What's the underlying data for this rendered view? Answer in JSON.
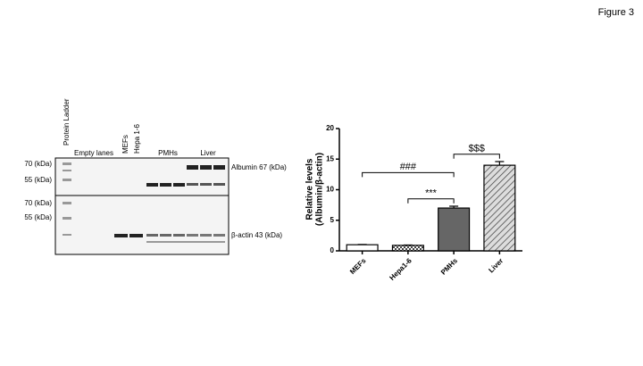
{
  "figure_label": "Figure 3",
  "blot": {
    "lane_labels": [
      "Protein Ladder",
      "Empty lanes",
      "MEFs",
      "Hepa 1-6",
      "PMHs",
      "Liver"
    ],
    "markers_top": [
      "70 (kDa)",
      "55 (kDa)"
    ],
    "markers_bottom": [
      "70 (kDa)",
      "55 (kDa)"
    ],
    "targets": [
      "Albumin  67 (kDa)",
      "β-actin  43 (kDa)"
    ]
  },
  "chart_data": {
    "type": "bar",
    "y_label": [
      "Relative levels",
      "(Albumin/β-actin)"
    ],
    "categories": [
      "MEFs",
      "Hepa1-6",
      "PMHs",
      "Liver"
    ],
    "values": [
      1.0,
      0.9,
      7.0,
      14.0
    ],
    "errors": [
      0.05,
      0.05,
      0.3,
      0.6
    ],
    "colors": [
      "#ffffff",
      "#bbbbbb",
      "#666666",
      "#cccccc"
    ],
    "patterns": [
      null,
      "checker",
      null,
      "hatch"
    ],
    "ylim": [
      0,
      20
    ],
    "yticks": [
      0,
      5,
      10,
      15,
      20
    ],
    "annotations": [
      {
        "text": "###",
        "from": 0,
        "to": 2,
        "y": 12.8
      },
      {
        "text": "***",
        "from": 1,
        "to": 2,
        "y": 8.5
      },
      {
        "text": "$$$",
        "from": 2,
        "to": 3,
        "y": 15.8
      }
    ]
  }
}
